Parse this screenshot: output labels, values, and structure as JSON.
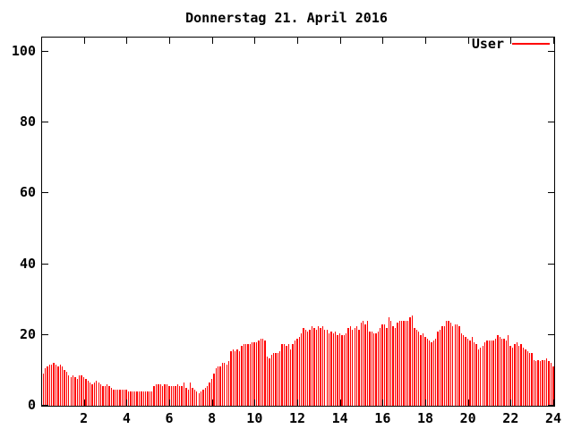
{
  "title": "Donnerstag 21. April 2016",
  "legend": {
    "label": "User"
  },
  "colors": {
    "bar": "#ff0000",
    "axis": "#000000",
    "background": "#ffffff",
    "text": "#000000"
  },
  "chart_data": {
    "type": "bar",
    "title": "Donnerstag 21. April 2016",
    "xlabel": "",
    "ylabel": "",
    "xlim": [
      0,
      24
    ],
    "ylim": [
      0,
      104
    ],
    "x_ticks": [
      2,
      4,
      6,
      8,
      10,
      12,
      14,
      16,
      18,
      20,
      22,
      24
    ],
    "y_ticks": [
      0,
      20,
      40,
      60,
      80,
      100
    ],
    "grid": false,
    "legend_position": "top-right",
    "interval_minutes": 6,
    "start_hour": 0,
    "series": [
      {
        "name": "User",
        "color": "#ff0000",
        "values": [
          9,
          10.5,
          11,
          11.5,
          11.5,
          12,
          11.5,
          11,
          11.5,
          11,
          10,
          9.5,
          8.5,
          8,
          8.5,
          8,
          7.5,
          8.5,
          8.5,
          8,
          7.5,
          7,
          6.5,
          6,
          6.5,
          7,
          6.5,
          6,
          5.5,
          5.5,
          6,
          5.5,
          5,
          4.5,
          4.5,
          4.5,
          4.5,
          4.5,
          4.5,
          4.5,
          4,
          4,
          4,
          4,
          4,
          4,
          4,
          4,
          4,
          4,
          4,
          4,
          5.5,
          6,
          6,
          6,
          5.5,
          6,
          6,
          5.5,
          5.5,
          5.5,
          5.5,
          6,
          5.5,
          5.5,
          6.5,
          5,
          4.5,
          6.5,
          5,
          4.5,
          4,
          3.5,
          4,
          4.5,
          5,
          5.5,
          6.5,
          7.5,
          9,
          10.5,
          11,
          11,
          12,
          12,
          11.5,
          12.5,
          15.5,
          16,
          15.5,
          16,
          15.5,
          17,
          17.5,
          17.5,
          17.5,
          17.5,
          18,
          18,
          18,
          18.5,
          19,
          19,
          18.5,
          14,
          13.5,
          14.5,
          15,
          15,
          15,
          15.5,
          17.5,
          17.5,
          17,
          17.5,
          16,
          17.5,
          18.5,
          19,
          19.5,
          20.5,
          22,
          21.5,
          21,
          21.5,
          22.5,
          22,
          21.5,
          22.5,
          22,
          22.5,
          21.5,
          21.5,
          20.5,
          21,
          20.5,
          21,
          20,
          20.5,
          20,
          20,
          20.5,
          22,
          22.5,
          21.5,
          22,
          22.5,
          21.5,
          23.5,
          24,
          23,
          24,
          21,
          21,
          20.5,
          20.5,
          21,
          22,
          23,
          23,
          22,
          25,
          24,
          22.5,
          22,
          23.5,
          24,
          24,
          24,
          24,
          24,
          25,
          25.5,
          22,
          21.5,
          21,
          20,
          20.5,
          19.5,
          19,
          18.5,
          18,
          18.5,
          19,
          21,
          21.5,
          22.5,
          22.5,
          24,
          24,
          23.5,
          22.5,
          23,
          23,
          22.5,
          20.5,
          20,
          19.5,
          19,
          18.5,
          19.5,
          18,
          17.5,
          16,
          16.5,
          17,
          18,
          18.5,
          18.5,
          18.5,
          18.5,
          19,
          20,
          19.5,
          19,
          19,
          18.5,
          20,
          17,
          16.5,
          17.5,
          18,
          17,
          17.5,
          16.5,
          16,
          15.5,
          15,
          15,
          13,
          12.5,
          13,
          12.5,
          13,
          13,
          13.5,
          12.5,
          12,
          11
        ]
      }
    ]
  }
}
